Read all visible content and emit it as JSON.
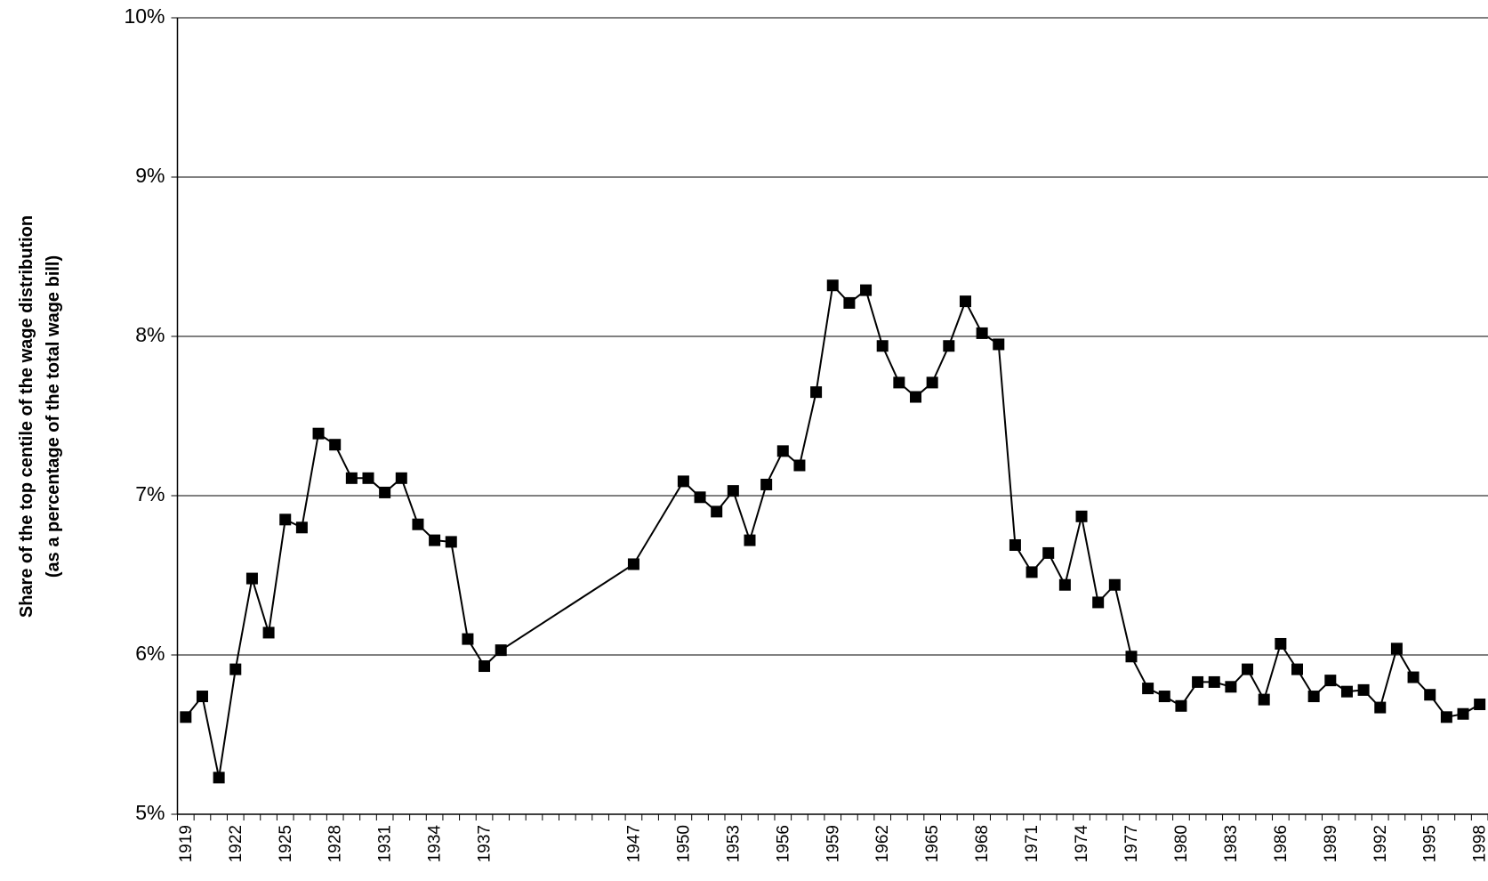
{
  "chart_data": {
    "type": "line",
    "ylabel": [
      "Share of the top centile of the wage distribution",
      "(as a percentage of the total wage bill)"
    ],
    "categories": [
      "1919",
      null,
      null,
      "1922",
      null,
      null,
      "1925",
      null,
      null,
      "1928",
      null,
      null,
      "1931",
      null,
      null,
      "1934",
      null,
      null,
      "1937",
      null,
      null,
      null,
      null,
      null,
      null,
      null,
      null,
      "1947",
      null,
      null,
      "1950",
      null,
      null,
      "1953",
      null,
      null,
      "1956",
      null,
      null,
      "1959",
      null,
      null,
      "1962",
      null,
      null,
      "1965",
      null,
      null,
      "1968",
      null,
      null,
      "1971",
      null,
      null,
      "1974",
      null,
      null,
      "1977",
      null,
      null,
      "1980",
      null,
      null,
      "1983",
      null,
      null,
      "1986",
      null,
      null,
      "1989",
      null,
      null,
      "1992",
      null,
      null,
      "1995",
      null,
      null,
      "1998"
    ],
    "series": [
      {
        "color": "#000000",
        "values": [
          5.61,
          5.74,
          5.23,
          5.91,
          6.48,
          6.14,
          6.85,
          6.8,
          7.39,
          7.32,
          7.11,
          7.11,
          7.02,
          7.11,
          6.82,
          6.72,
          6.71,
          6.1,
          5.93,
          6.03,
          null,
          null,
          null,
          null,
          null,
          null,
          null,
          6.57,
          null,
          null,
          7.09,
          6.99,
          6.9,
          7.03,
          6.72,
          7.07,
          7.28,
          7.19,
          7.65,
          8.32,
          8.21,
          8.29,
          7.94,
          7.71,
          7.62,
          7.71,
          7.94,
          8.22,
          8.02,
          7.95,
          6.69,
          6.52,
          6.64,
          6.44,
          6.87,
          6.33,
          6.44,
          5.99,
          5.79,
          5.74,
          5.68,
          5.83,
          5.83,
          5.8,
          5.91,
          5.72,
          6.07,
          5.91,
          5.74,
          5.84,
          5.77,
          5.78,
          5.67,
          6.04,
          5.86,
          5.75,
          5.61,
          5.63,
          5.69
        ]
      }
    ],
    "connect_gaps": true,
    "marker": "square",
    "ylim": [
      5,
      10
    ],
    "yticks": [
      {
        "value": 5,
        "label": "5%"
      },
      {
        "value": 6,
        "label": "6%"
      },
      {
        "value": 7,
        "label": "7%"
      },
      {
        "value": 8,
        "label": "8%"
      },
      {
        "value": 9,
        "label": "9%"
      },
      {
        "value": 10,
        "label": "10%"
      }
    ],
    "grid": true
  }
}
